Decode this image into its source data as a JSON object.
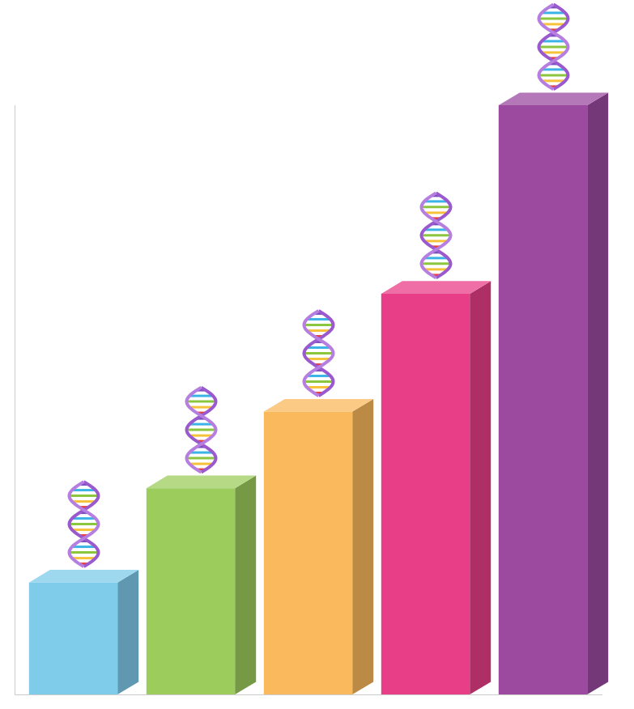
{
  "chart_data": {
    "type": "bar",
    "categories": [
      null,
      null,
      null,
      null,
      null
    ],
    "values": [
      19,
      35,
      48,
      68,
      100
    ],
    "colors": [
      "#7ecbea",
      "#9ccc5c",
      "#f9b95c",
      "#e83e87",
      "#9b4aa0"
    ],
    "ylim": [
      0,
      100
    ],
    "grid": false,
    "tick_labels": false
  }
}
